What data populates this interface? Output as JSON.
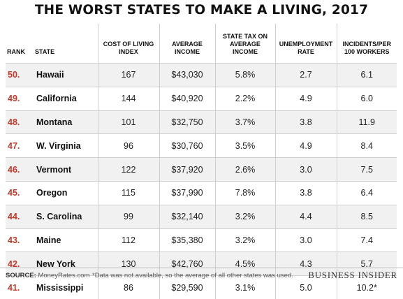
{
  "title": "THE WORST STATES TO MAKE A LIVING, 2017",
  "columns": {
    "rank": "RANK",
    "state": "STATE",
    "cost": "COST OF LIVING INDEX",
    "income": "AVERAGE INCOME",
    "tax": "STATE TAX ON AVERAGE INCOME",
    "unemployment": "UNEMPLOYMENT RATE",
    "incidents": "INCIDENTS/PER 100 WORKERS"
  },
  "rows": [
    {
      "rank": "50.",
      "state": "Hawaii",
      "cost": "167",
      "income": "$43,030",
      "tax": "5.8%",
      "unemployment": "2.7",
      "incidents": "6.1"
    },
    {
      "rank": "49.",
      "state": "California",
      "cost": "144",
      "income": "$40,920",
      "tax": "2.2%",
      "unemployment": "4.9",
      "incidents": "6.0"
    },
    {
      "rank": "48.",
      "state": "Montana",
      "cost": "101",
      "income": "$32,750",
      "tax": "3.7%",
      "unemployment": "3.8",
      "incidents": "11.9"
    },
    {
      "rank": "47.",
      "state": "W. Virginia",
      "cost": "96",
      "income": "$30,760",
      "tax": "3.5%",
      "unemployment": "4.9",
      "incidents": "8.4"
    },
    {
      "rank": "46.",
      "state": "Vermont",
      "cost": "122",
      "income": "$37,920",
      "tax": "2.6%",
      "unemployment": "3.0",
      "incidents": "7.5"
    },
    {
      "rank": "45.",
      "state": "Oregon",
      "cost": "115",
      "income": "$37,990",
      "tax": "7.8%",
      "unemployment": "3.8",
      "incidents": "6.4"
    },
    {
      "rank": "44.",
      "state": "S. Carolina",
      "cost": "99",
      "income": "$32,140",
      "tax": "3.2%",
      "unemployment": "4.4",
      "incidents": "8.5"
    },
    {
      "rank": "43.",
      "state": "Maine",
      "cost": "112",
      "income": "$35,380",
      "tax": "3.2%",
      "unemployment": "3.0",
      "incidents": "7.4"
    },
    {
      "rank": "42.",
      "state": "New York",
      "cost": "130",
      "income": "$42,760",
      "tax": "4.5%",
      "unemployment": "4.3",
      "incidents": "5.7"
    },
    {
      "rank": "41.",
      "state": "Mississippi",
      "cost": "86",
      "income": "$29,590",
      "tax": "3.1%",
      "unemployment": "5.0",
      "incidents": "10.2*"
    }
  ],
  "footer": {
    "source_label": "SOURCE:",
    "source_value": "MoneyRates.com",
    "note": "*Data was not available, so the average of all other states was used.",
    "brand": "BUSINESS INSIDER"
  },
  "colors": {
    "rank_accent": "#c0392b",
    "stripe": "#f1f1f1"
  }
}
